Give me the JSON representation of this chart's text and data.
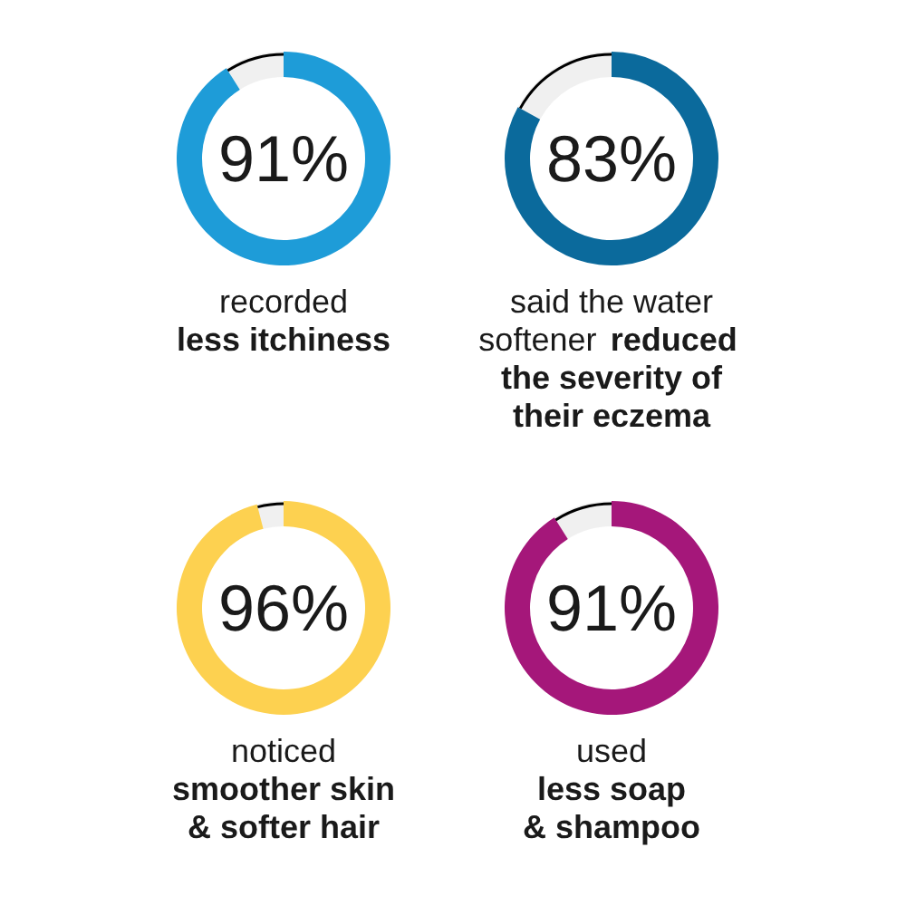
{
  "chart_data": [
    {
      "type": "donut",
      "categories": [
        null,
        null
      ],
      "values": [
        91,
        9
      ],
      "colors": [
        "#1e9cd8",
        "#000000"
      ],
      "value_labels": [
        "91%",
        null
      ],
      "annotations": [
        "recorded",
        "\nless itchiness"
      ]
    },
    {
      "type": "donut",
      "categories": [
        null,
        null
      ],
      "values": [
        83,
        17
      ],
      "colors": [
        "#0b6a9c",
        "#000000"
      ],
      "value_labels": [
        "83%",
        null
      ],
      "annotations": [
        "said the water\nsoftener",
        " reduced\nthe severity of\ntheir eczema"
      ]
    },
    {
      "type": "donut",
      "categories": [
        null,
        null
      ],
      "values": [
        96,
        4
      ],
      "colors": [
        "#fdd150",
        "#000000"
      ],
      "value_labels": [
        "96%",
        null
      ],
      "annotations": [
        "noticed",
        "\nsmoother skin\n& softer hair"
      ]
    },
    {
      "type": "donut",
      "categories": [
        null,
        null
      ],
      "values": [
        91,
        9
      ],
      "colors": [
        "#a5177a",
        "#000000"
      ],
      "value_labels": [
        "91%",
        null
      ],
      "annotations": [
        "used",
        "\nless soap\n& shampoo"
      ]
    }
  ]
}
